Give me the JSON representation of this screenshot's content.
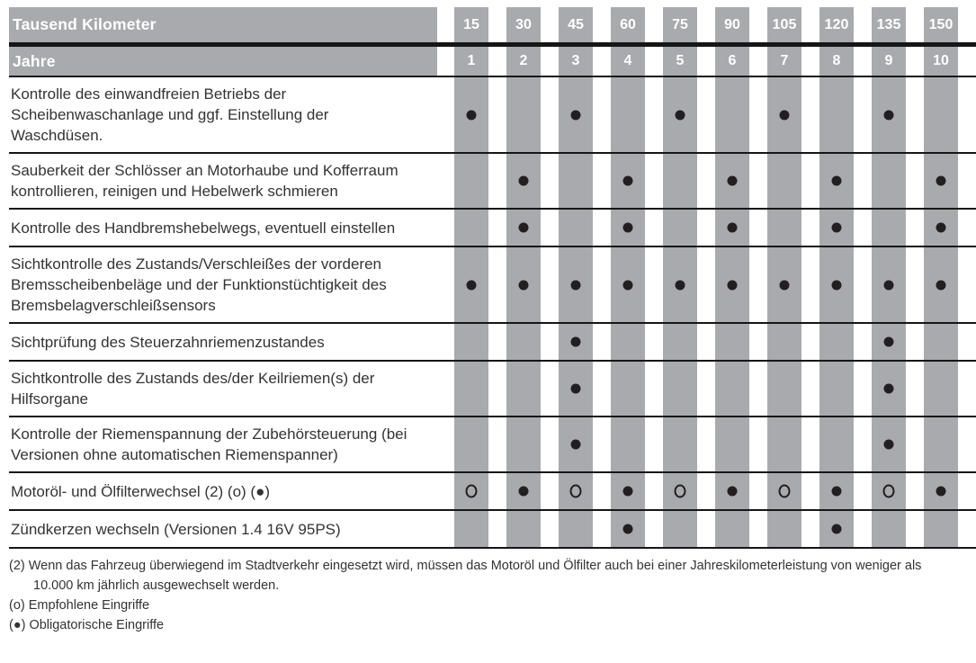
{
  "colors": {
    "stripe_gray": "#a8aaad",
    "line_black": "#161616",
    "body_text": "#333333",
    "mark_black": "#231f20",
    "header_text": "#ffffff"
  },
  "header": {
    "km_label": "Tausend Kilometer",
    "years_label": "Jahre",
    "km_values": [
      "15",
      "30",
      "45",
      "60",
      "75",
      "90",
      "105",
      "120",
      "135",
      "150"
    ],
    "year_values": [
      "1",
      "2",
      "3",
      "4",
      "5",
      "6",
      "7",
      "8",
      "9",
      "10"
    ]
  },
  "rows": [
    {
      "label": "Kontrolle des einwandfreien Betriebs der\nScheibenwaschanlage und ggf. Einstellung der\nWaschdüsen.",
      "marks": [
        "dot",
        "",
        "dot",
        "",
        "dot",
        "",
        "dot",
        "",
        "dot",
        ""
      ]
    },
    {
      "label": "Sauberkeit der Schlösser an Motorhaube und Kofferraum\nkontrollieren, reinigen und Hebelwerk schmieren",
      "marks": [
        "",
        "dot",
        "",
        "dot",
        "",
        "dot",
        "",
        "dot",
        "",
        "dot"
      ]
    },
    {
      "label": "Kontrolle des Handbremshebelwegs, eventuell einstellen",
      "marks": [
        "",
        "dot",
        "",
        "dot",
        "",
        "dot",
        "",
        "dot",
        "",
        "dot"
      ]
    },
    {
      "label": "Sichtkontrolle des Zustands/Verschleißes der vorderen\nBremsscheibenbeläge und der Funktionstüchtigkeit des\nBremsbelagverschleißsensors",
      "marks": [
        "dot",
        "dot",
        "dot",
        "dot",
        "dot",
        "dot",
        "dot",
        "dot",
        "dot",
        "dot"
      ]
    },
    {
      "label": "Sichtprüfung des Steuerzahnriemenzustandes",
      "marks": [
        "",
        "",
        "dot",
        "",
        "",
        "",
        "",
        "",
        "dot",
        ""
      ]
    },
    {
      "label": "Sichtkontrolle des Zustands des/der Keilriemen(s) der\nHilfsorgane",
      "marks": [
        "",
        "",
        "dot",
        "",
        "",
        "",
        "",
        "",
        "dot",
        ""
      ]
    },
    {
      "label": "Kontrolle der Riemenspannung der Zubehörsteuerung (bei\nVersionen ohne automatischen Riemenspanner)",
      "marks": [
        "",
        "",
        "dot",
        "",
        "",
        "",
        "",
        "",
        "dot",
        ""
      ]
    },
    {
      "label": "Motoröl- und Ölfilterwechsel (2) (o) (●)",
      "marks": [
        "circle",
        "dot",
        "circle",
        "dot",
        "circle",
        "dot",
        "circle",
        "dot",
        "circle",
        "dot"
      ]
    },
    {
      "label": "Zündkerzen wechseln (Versionen 1.4 16V 95PS)",
      "marks": [
        "",
        "",
        "",
        "dot",
        "",
        "",
        "",
        "dot",
        "",
        ""
      ]
    }
  ],
  "legend": {
    "dot_meaning": "Obligatorische Eingriffe",
    "circle_meaning": "Empfohlene Eingriffe"
  },
  "footnotes": [
    {
      "marker": "(2)",
      "text": "Wenn das Fahrzeug überwiegend im Stadtverkehr eingesetzt wird, müssen das Motoröl und Ölfilter auch bei einer Jahreskilometerleistung von weniger als\n10.000 km jährlich ausgewechselt werden."
    },
    {
      "marker": "(o)",
      "text": "Empfohlene Eingriffe"
    },
    {
      "marker": "(●)",
      "text": "Obligatorische Eingriffe"
    }
  ]
}
